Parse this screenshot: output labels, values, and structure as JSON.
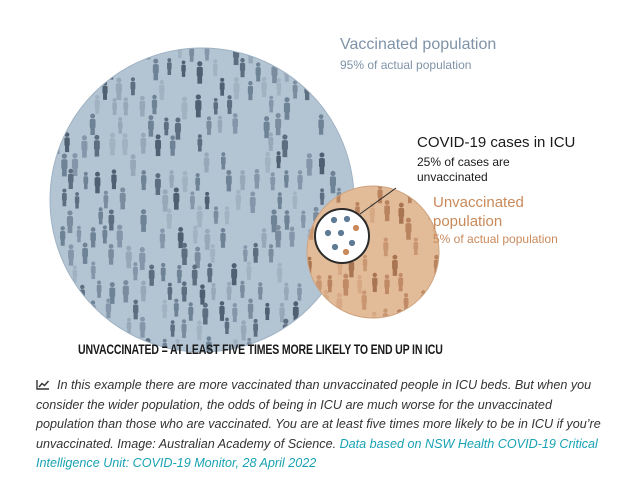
{
  "figure": {
    "vaccinated": {
      "title": "Vaccinated population",
      "subtitle": "95% of actual population",
      "color": "#aebfcf"
    },
    "icu": {
      "title": "COVID-19 cases in ICU",
      "subtitle": "25% of cases are unvaccinated",
      "dot_vaccinated_color": "#5f7a94",
      "dot_unvaccinated_color": "#c98a5b",
      "dots_vaccinated": 6,
      "dots_unvaccinated": 2
    },
    "unvaccinated": {
      "title": "Unvaccinated population",
      "subtitle": "5% of actual population",
      "color": "#dcb592"
    },
    "headline": "UNVACCINATED = AT LEAST FIVE TIMES MORE LIKELY TO END UP IN ICU"
  },
  "caption": {
    "icon": "chart-line-icon",
    "text": "In this example there are more vaccinated than unvaccinated people in ICU beds. But when you consider the wider population, the odds of being in ICU are much worse for the unvaccinated population than those who are vaccinated. You are at least five times more likely to be in ICU if you’re unvaccinated. Image: Australian Academy of Science. ",
    "link_text": "Data based on NSW Health COVID-19 Critical Intelligence Unit: COVID-19 Monitor, 28 April 2022"
  }
}
